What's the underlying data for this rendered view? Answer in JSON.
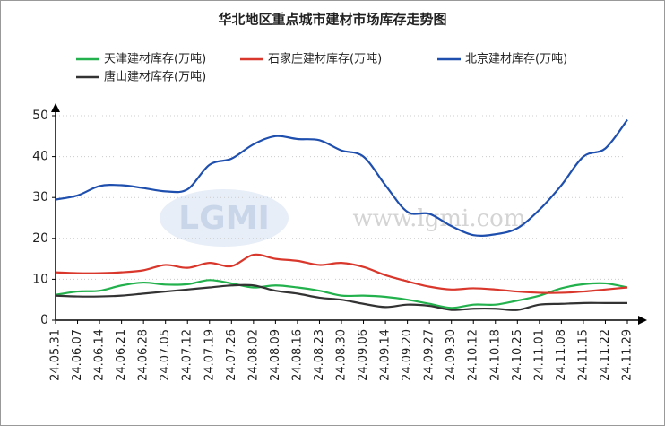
{
  "chart_data": {
    "type": "line",
    "title": "华北地区重点城市建材市场库存走势图",
    "categories": [
      "24.05.31",
      "24.06.07",
      "24.06.14",
      "24.06.21",
      "24.06.28",
      "24.07.05",
      "24.07.12",
      "24.07.19",
      "24.07.26",
      "24.08.02",
      "24.08.09",
      "24.08.16",
      "24.08.23",
      "24.08.30",
      "24.09.06",
      "24.09.14",
      "24.09.20",
      "24.09.27",
      "24.09.30",
      "24.10.12",
      "24.10.18",
      "24.10.25",
      "24.11.01",
      "24.11.08",
      "24.11.15",
      "24.11.22",
      "24.11.29"
    ],
    "series": [
      {
        "name": "天津建材库存(万吨)",
        "color": "#22b14c",
        "values": [
          6.2,
          7,
          7.2,
          8.5,
          9.2,
          8.7,
          8.8,
          9.8,
          9,
          8,
          8.5,
          8,
          7.2,
          6,
          6,
          5.7,
          5,
          4,
          3,
          3.8,
          3.8,
          4.8,
          6,
          7.8,
          8.8,
          9,
          8
        ]
      },
      {
        "name": "石家庄建材库存(万吨)",
        "color": "#d9372b",
        "values": [
          11.7,
          11.5,
          11.5,
          11.7,
          12.2,
          13.5,
          12.8,
          14,
          13.2,
          16,
          15,
          14.5,
          13.5,
          14,
          13,
          11,
          9.5,
          8.2,
          7.5,
          7.8,
          7.5,
          7,
          6.7,
          6.7,
          7,
          7.5,
          8
        ]
      },
      {
        "name": "北京建材库存(万吨)",
        "color": "#1f4fae",
        "values": [
          29.5,
          30.5,
          32.8,
          33,
          32.3,
          31.5,
          32,
          38,
          39.5,
          43,
          45,
          44.3,
          44,
          41.5,
          40,
          33,
          26.5,
          26,
          23,
          20.8,
          21,
          22.5,
          27,
          33,
          40,
          42,
          49
        ]
      },
      {
        "name": "唐山建材库存(万吨)",
        "color": "#333333",
        "values": [
          6,
          5.8,
          5.8,
          6,
          6.5,
          7,
          7.5,
          8,
          8.5,
          8.5,
          7.2,
          6.5,
          5.5,
          5,
          4,
          3.2,
          3.8,
          3.5,
          2.5,
          2.8,
          2.8,
          2.5,
          3.8,
          4,
          4.2,
          4.2,
          4.2
        ]
      }
    ],
    "ylim": [
      0,
      50
    ],
    "yticks": [
      0,
      10,
      20,
      30,
      40,
      50
    ],
    "grid": true,
    "watermark": {
      "logo": "LGMI",
      "url": "www.lgmi.com"
    }
  }
}
